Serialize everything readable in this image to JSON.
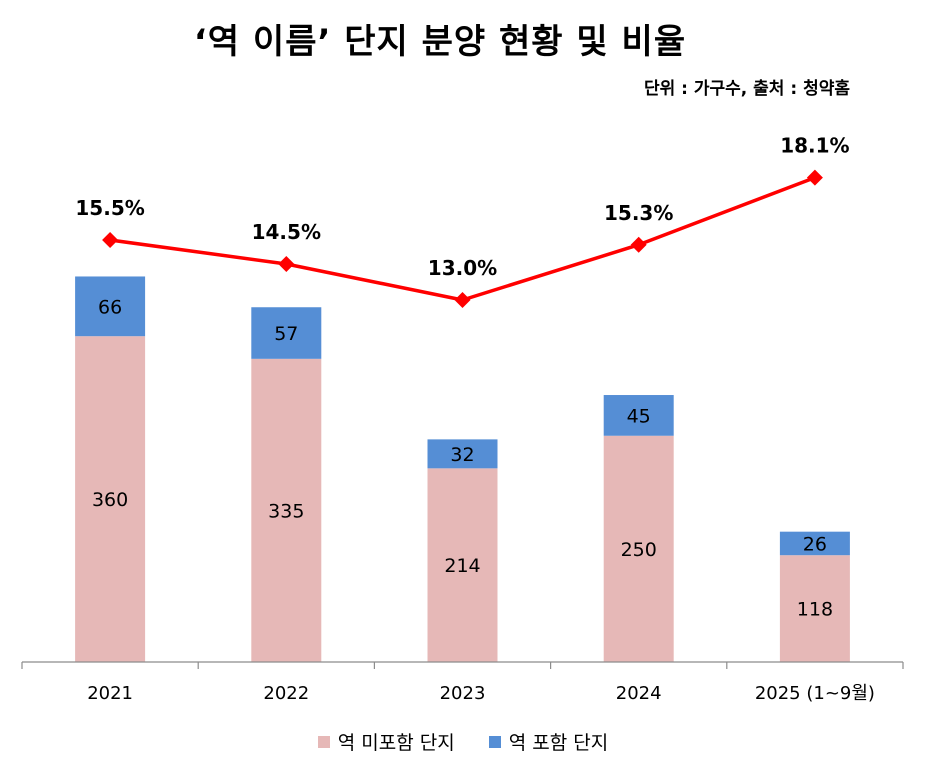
{
  "chart_data": {
    "type": "bar",
    "title": "‘역 이름’ 단지 분양 현황 및 비율",
    "subtitle": "단위 : 가구수,  출처 : 청약홈",
    "categories": [
      "2021",
      "2022",
      "2023",
      "2024",
      "2025 (1~9월)"
    ],
    "series": [
      {
        "name": "역 미포함 단지",
        "type": "stacked-bar",
        "values": [
          360,
          335,
          214,
          250,
          118
        ],
        "color": "#E6B8B7"
      },
      {
        "name": "역 포함 단지",
        "type": "stacked-bar",
        "values": [
          66,
          57,
          32,
          45,
          26
        ],
        "color": "#558ED5"
      },
      {
        "type": "line",
        "values": [
          15.5,
          14.5,
          13.0,
          15.3,
          18.1
        ],
        "labels": [
          "15.5%",
          "14.5%",
          "13.0%",
          "15.3%",
          "18.1%"
        ],
        "color": "#FF0000"
      }
    ],
    "legend_position": "bottom",
    "grid": false
  }
}
